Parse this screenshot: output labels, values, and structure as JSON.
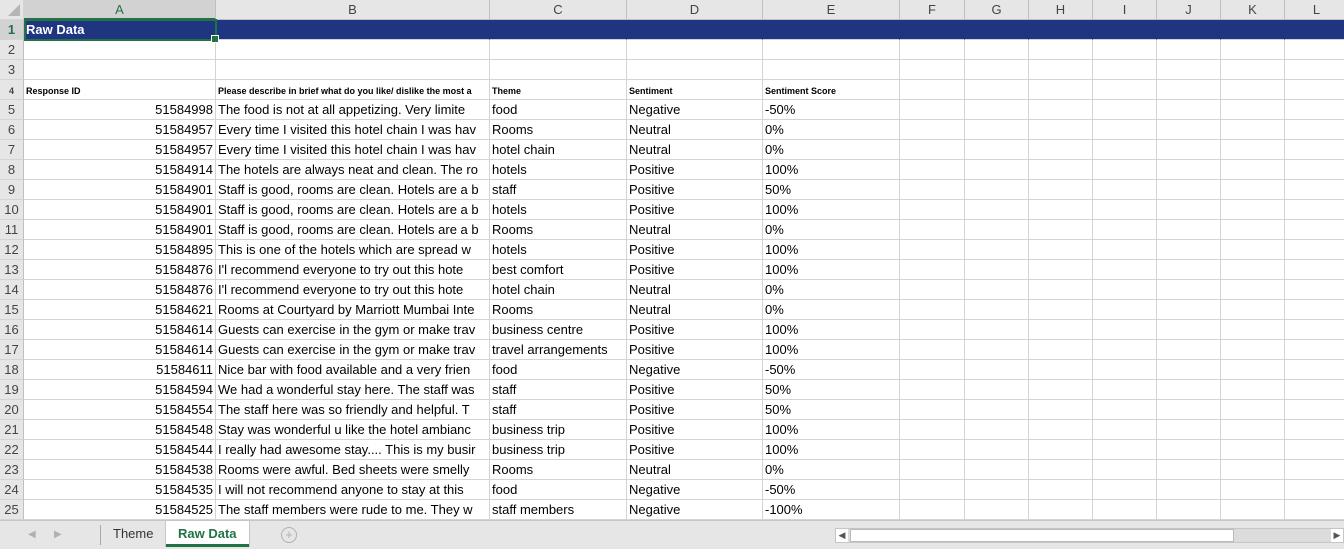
{
  "columns": [
    "A",
    "B",
    "C",
    "D",
    "E",
    "F",
    "G",
    "H",
    "I",
    "J",
    "K",
    "L"
  ],
  "title": "Raw Data",
  "headers": [
    "Response ID",
    "Please describe in brief what do you like/ dislike the most a",
    "Theme",
    "Sentiment",
    "Sentiment Score"
  ],
  "rows": [
    [
      "51584998",
      "The food is not at all appetizing. Very limite",
      "food",
      "Negative",
      "-50%"
    ],
    [
      "51584957",
      "Every time I visited this hotel chain I was hav",
      "Rooms",
      "Neutral",
      "0%"
    ],
    [
      "51584957",
      "Every time I visited this hotel chain I was hav",
      "hotel chain",
      "Neutral",
      "0%"
    ],
    [
      "51584914",
      "The hotels are always neat and clean. The ro",
      "hotels",
      "Positive",
      "100%"
    ],
    [
      "51584901",
      "Staff is good, rooms are clean. Hotels are a b",
      "staff",
      "Positive",
      "50%"
    ],
    [
      "51584901",
      "Staff is good, rooms are clean. Hotels are a b",
      "hotels",
      "Positive",
      "100%"
    ],
    [
      "51584901",
      "Staff is good, rooms are clean. Hotels are a b",
      "Rooms",
      "Neutral",
      "0%"
    ],
    [
      "51584895",
      "This is one of the hotels which are spread w",
      "hotels",
      "Positive",
      "100%"
    ],
    [
      "51584876",
      "I'l recommend everyone to try out this hote",
      "best comfort",
      "Positive",
      "100%"
    ],
    [
      "51584876",
      "I'l recommend everyone to try out this hote",
      "hotel chain",
      "Neutral",
      "0%"
    ],
    [
      "51584621",
      "Rooms at Courtyard by Marriott Mumbai Inte",
      "Rooms",
      "Neutral",
      "0%"
    ],
    [
      "51584614",
      "Guests can exercise in the gym or make trav",
      "business centre",
      "Positive",
      "100%"
    ],
    [
      "51584614",
      "Guests can exercise in the gym or make trav",
      "travel arrangements",
      "Positive",
      "100%"
    ],
    [
      "51584611",
      "Nice bar with food available and a very frien",
      "food",
      "Negative",
      "-50%"
    ],
    [
      "51584594",
      "We had a wonderful stay here. The staff was",
      "staff",
      "Positive",
      "50%"
    ],
    [
      "51584554",
      "The staff here was so friendly and helpful. T",
      "staff",
      "Positive",
      "50%"
    ],
    [
      "51584548",
      "Stay was wonderful u like the hotel ambianc",
      "business trip",
      "Positive",
      "100%"
    ],
    [
      "51584544",
      "I really had awesome stay.... This is my busir",
      "business trip",
      "Positive",
      "100%"
    ],
    [
      "51584538",
      "Rooms were awful. Bed sheets were smelly",
      "Rooms",
      "Neutral",
      "0%"
    ],
    [
      "51584535",
      "I will not recommend anyone to stay at this",
      "food",
      "Negative",
      "-50%"
    ],
    [
      "51584525",
      "The staff members were rude to me. They w",
      "staff members",
      "Negative",
      "-100%"
    ]
  ],
  "sheet_tabs": [
    {
      "label": "Theme",
      "active": false
    },
    {
      "label": "Raw Data",
      "active": true
    }
  ],
  "accent_color": "#217346",
  "title_fill_color": "#1f3582"
}
